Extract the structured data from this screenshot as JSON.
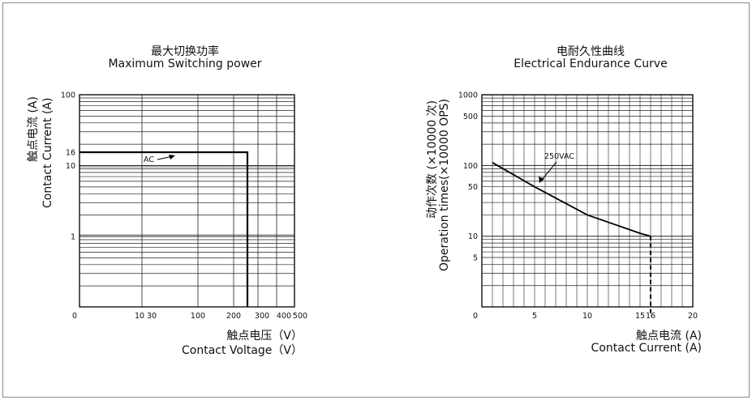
{
  "chart_data": [
    {
      "type": "line",
      "title": "最大切换功率",
      "subtitle": "Maximum Switching power",
      "xlabel": "触点电压（V）",
      "xlabel_en": "Contact Voltage（V）",
      "ylabel": "触点电流 (A)",
      "ylabel_en": "Contact Current (A)",
      "x_ticks": [
        "0",
        "10",
        "30",
        "100",
        "200",
        "300",
        "400",
        "500"
      ],
      "y_ticks": [
        "100",
        "16",
        "10",
        "1"
      ],
      "series": [
        {
          "name": "AC",
          "points": [
            {
              "x": 0,
              "y": 16
            },
            {
              "x": 250,
              "y": 16
            },
            {
              "x": 250,
              "y": 0
            }
          ]
        }
      ],
      "grid": true
    },
    {
      "type": "line",
      "title": "电耐久性曲线",
      "subtitle": "Electrical Endurance Curve",
      "xlabel": "触点电流 (A)",
      "xlabel_en": "Contact Current (A)",
      "ylabel": "动作次数 (×10000 次)",
      "ylabel_en": "Operation times(×10000 OPS)",
      "x_ticks": [
        "0",
        "5",
        "10",
        "15",
        "16",
        "20"
      ],
      "y_ticks": [
        "1000",
        "500",
        "100",
        "50",
        "10",
        "5"
      ],
      "xlim": [
        0,
        20
      ],
      "series": [
        {
          "name": "250VAC",
          "points": [
            {
              "x": 1,
              "y": 110
            },
            {
              "x": 5,
              "y": 50
            },
            {
              "x": 10,
              "y": 20
            },
            {
              "x": 15,
              "y": 11
            },
            {
              "x": 16,
              "y": 10
            }
          ]
        }
      ],
      "grid": true
    }
  ]
}
